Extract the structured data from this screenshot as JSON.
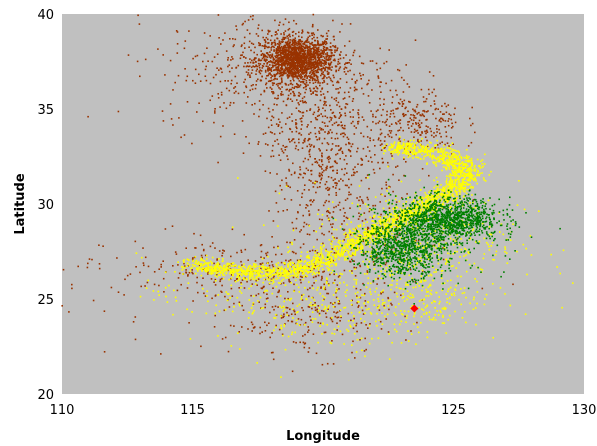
{
  "chart_data": {
    "type": "scatter",
    "title": "",
    "xlabel": "Longitude",
    "ylabel": "Latitude",
    "xlim": [
      110,
      130
    ],
    "ylim": [
      20,
      40
    ],
    "x_ticks": [
      110,
      115,
      120,
      125,
      130
    ],
    "y_ticks": [
      20,
      25,
      30,
      35,
      40
    ],
    "grid": false,
    "legend": "none",
    "plot_background": "#c0c0c0",
    "series": [
      {
        "color": "#993300",
        "description_points": "dense cluster near (119,37.5) spreading south and west",
        "clusters": [
          {
            "cx": 119.0,
            "cy": 37.6,
            "sx": 0.7,
            "sy": 0.6,
            "n": 1600
          },
          {
            "cx": 118.3,
            "cy": 37.0,
            "sx": 2.2,
            "sy": 1.6,
            "n": 500
          },
          {
            "cx": 119.8,
            "cy": 33.5,
            "sx": 1.0,
            "sy": 2.0,
            "n": 450
          },
          {
            "cx": 123.5,
            "cy": 34.3,
            "sx": 0.9,
            "sy": 0.9,
            "n": 260
          },
          {
            "cx": 121.0,
            "cy": 29.0,
            "sx": 1.6,
            "sy": 2.0,
            "n": 300
          },
          {
            "cx": 117.0,
            "cy": 26.5,
            "sx": 2.4,
            "sy": 0.8,
            "n": 260
          },
          {
            "cx": 119.5,
            "cy": 24.0,
            "sx": 1.6,
            "sy": 1.0,
            "n": 220
          },
          {
            "cx": 112.5,
            "cy": 25.5,
            "sx": 2.5,
            "sy": 1.5,
            "n": 40
          }
        ]
      },
      {
        "color": "#ffff00",
        "description_points": "curved band from (115,26.5) to (123,33) plus scatter",
        "path": [
          [
            115.0,
            26.8
          ],
          [
            116.5,
            26.5
          ],
          [
            118.0,
            26.3
          ],
          [
            119.5,
            26.7
          ],
          [
            120.5,
            27.4
          ],
          [
            121.5,
            28.2
          ],
          [
            122.5,
            28.9
          ],
          [
            123.5,
            29.6
          ],
          [
            124.5,
            30.3
          ],
          [
            125.3,
            31.0
          ],
          [
            125.5,
            31.8
          ],
          [
            124.8,
            32.5
          ],
          [
            123.5,
            32.9
          ],
          [
            122.8,
            33.0
          ]
        ],
        "band_n": 2400,
        "clusters": [
          {
            "cx": 123.5,
            "cy": 28.0,
            "sx": 2.0,
            "sy": 1.6,
            "n": 500
          },
          {
            "cx": 120.5,
            "cy": 24.5,
            "sx": 2.0,
            "sy": 1.2,
            "n": 220
          },
          {
            "cx": 123.8,
            "cy": 25.0,
            "sx": 1.2,
            "sy": 0.8,
            "n": 150
          },
          {
            "cx": 117.0,
            "cy": 25.3,
            "sx": 2.0,
            "sy": 1.0,
            "n": 120
          }
        ]
      },
      {
        "color": "#008000",
        "description_points": "cluster near (124,28.5)",
        "clusters": [
          {
            "cx": 124.8,
            "cy": 29.2,
            "sx": 1.0,
            "sy": 0.55,
            "n": 1000
          },
          {
            "cx": 123.0,
            "cy": 27.6,
            "sx": 0.8,
            "sy": 0.7,
            "n": 700
          },
          {
            "cx": 124.0,
            "cy": 28.4,
            "sx": 1.5,
            "sy": 1.1,
            "n": 300
          }
        ]
      },
      {
        "color": "#ff0000",
        "description_points": "single marker",
        "points": [
          [
            123.5,
            24.5
          ]
        ]
      }
    ]
  }
}
